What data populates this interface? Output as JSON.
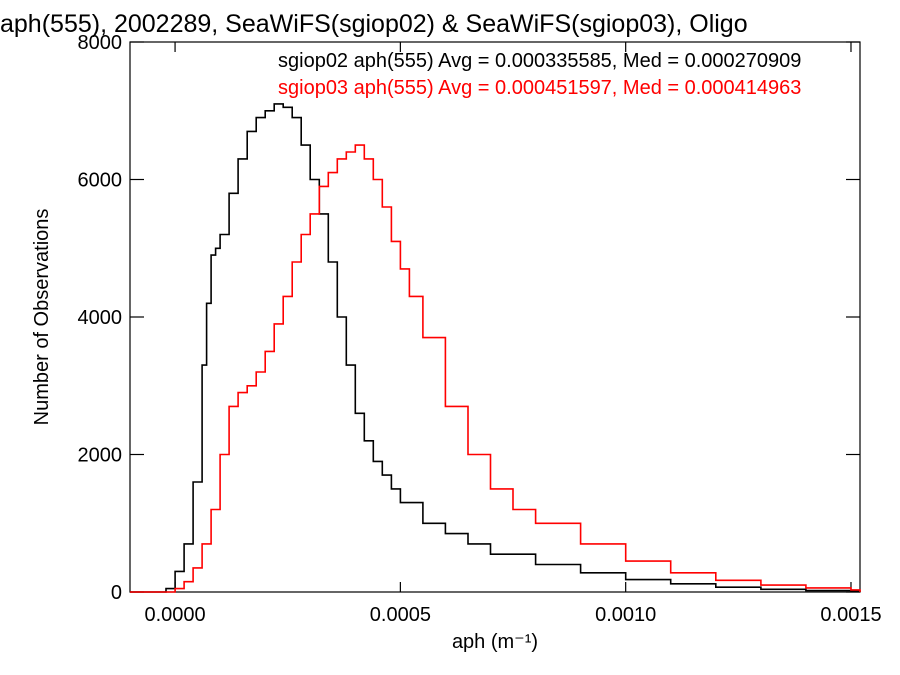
{
  "chart_data": {
    "type": "line",
    "title": "aph(555), 2002289, SeaWiFS(sgiop02) & SeaWiFS(sgiop03), Oligo",
    "xlabel": "aph (m⁻¹)",
    "ylabel": "Number of Observations",
    "xlim": [
      -0.0001,
      0.00152
    ],
    "ylim": [
      0,
      8000
    ],
    "xticks": [
      {
        "value": 0.0,
        "label": "0.0000"
      },
      {
        "value": 0.0005,
        "label": "0.0005"
      },
      {
        "value": 0.001,
        "label": "0.0010"
      },
      {
        "value": 0.0015,
        "label": "0.0015"
      }
    ],
    "yticks": [
      {
        "value": 0,
        "label": "0"
      },
      {
        "value": 2000,
        "label": "2000"
      },
      {
        "value": 4000,
        "label": "4000"
      },
      {
        "value": 6000,
        "label": "6000"
      },
      {
        "value": 8000,
        "label": "8000"
      }
    ],
    "annotations": [
      {
        "text": "sgiop02 aph(555) Avg = 0.000335585, Med = 0.000270909",
        "color": "#000000"
      },
      {
        "text": "sgiop03 aph(555) Avg = 0.000451597, Med = 0.000414963",
        "color": "#ff0000"
      }
    ],
    "series": [
      {
        "color": "#000000",
        "x": [
          -0.0001,
          -5e-05,
          -2e-05,
          0.0,
          2e-05,
          4e-05,
          6e-05,
          7e-05,
          8e-05,
          9e-05,
          0.0001,
          0.00012,
          0.00014,
          0.00016,
          0.00018,
          0.0002,
          0.00022,
          0.00024,
          0.00026,
          0.00028,
          0.0003,
          0.00032,
          0.00034,
          0.00036,
          0.00038,
          0.0004,
          0.00042,
          0.00044,
          0.00046,
          0.00048,
          0.0005,
          0.00055,
          0.0006,
          0.00065,
          0.0007,
          0.0008,
          0.0009,
          0.001,
          0.0011,
          0.0012,
          0.0013,
          0.0014,
          0.0015,
          0.00152
        ],
        "y": [
          0,
          0,
          50,
          300,
          700,
          1600,
          3300,
          4200,
          4900,
          5000,
          5200,
          5800,
          6300,
          6700,
          6900,
          7000,
          7100,
          7050,
          6900,
          6500,
          6000,
          5500,
          4800,
          4000,
          3300,
          2600,
          2200,
          1900,
          1700,
          1500,
          1300,
          1000,
          850,
          700,
          550,
          400,
          280,
          180,
          120,
          70,
          40,
          20,
          10,
          0
        ]
      },
      {
        "color": "#ff0000",
        "x": [
          -0.0001,
          -3e-05,
          0.0,
          2e-05,
          4e-05,
          6e-05,
          8e-05,
          0.0001,
          0.00012,
          0.00014,
          0.00016,
          0.00018,
          0.0002,
          0.00022,
          0.00024,
          0.00026,
          0.00028,
          0.0003,
          0.00032,
          0.00034,
          0.00036,
          0.00038,
          0.0004,
          0.00042,
          0.00044,
          0.00046,
          0.00048,
          0.0005,
          0.00052,
          0.00055,
          0.0006,
          0.00065,
          0.0007,
          0.00075,
          0.0008,
          0.0009,
          0.001,
          0.0011,
          0.0012,
          0.0013,
          0.0014,
          0.0015,
          0.00152
        ],
        "y": [
          0,
          0,
          50,
          150,
          350,
          700,
          1200,
          2000,
          2700,
          2900,
          3000,
          3200,
          3500,
          3900,
          4300,
          4800,
          5200,
          5500,
          5900,
          6100,
          6300,
          6400,
          6500,
          6300,
          6000,
          5600,
          5100,
          4700,
          4300,
          3700,
          2700,
          2000,
          1500,
          1200,
          1000,
          700,
          450,
          280,
          170,
          100,
          60,
          30,
          0
        ]
      }
    ]
  }
}
